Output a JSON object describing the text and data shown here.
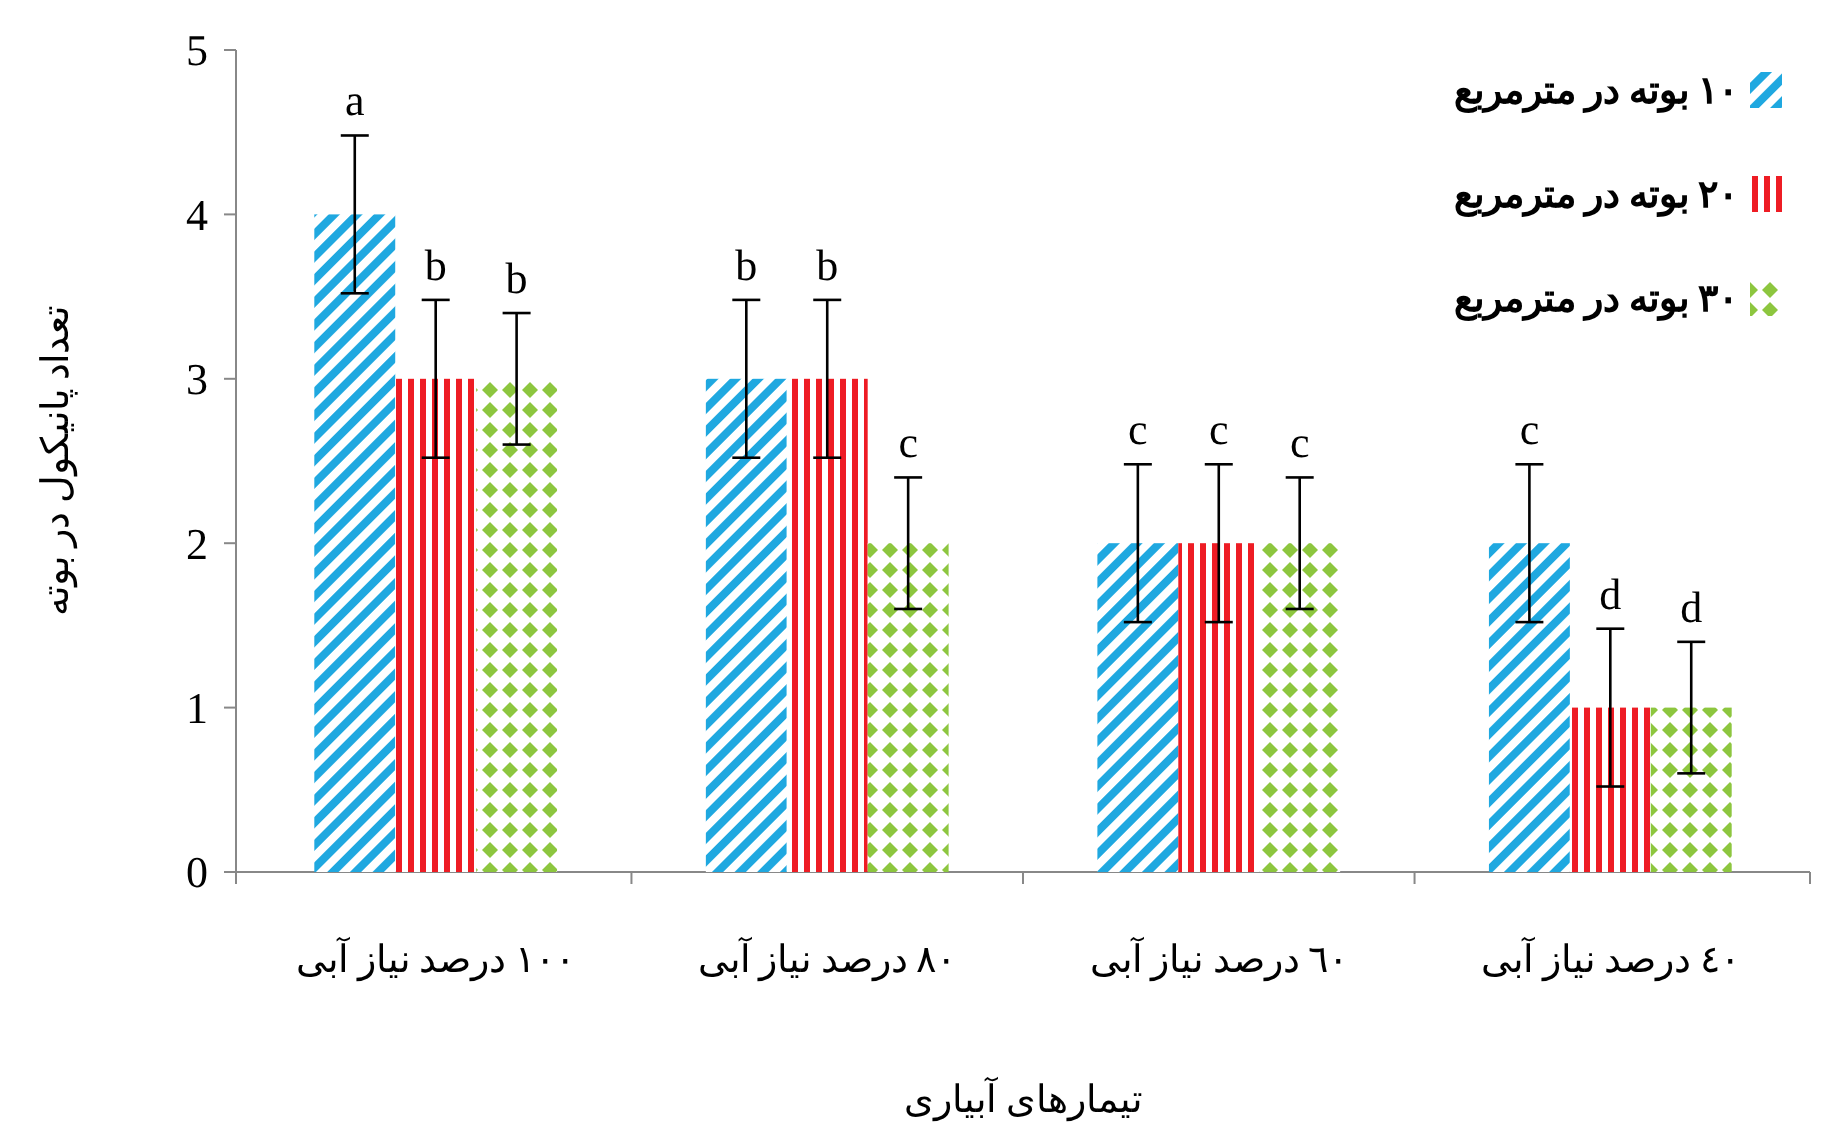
{
  "chart_data": {
    "type": "bar",
    "xlabel": "تیمارهای آبیاری",
    "ylabel": "تعداد پانیکول در بوته",
    "categories": [
      "١٠٠ درصد نیاز آبی",
      "٨٠ درصد نیاز آبی",
      "٦٠ درصد نیاز آبی",
      "٤٠ درصد نیاز آبی"
    ],
    "series": [
      {
        "name": "١٠ بوته در مترمربع",
        "color": "#1fa8e0",
        "values": [
          4,
          3,
          2,
          2
        ],
        "errors": [
          0.48,
          0.48,
          0.48,
          0.48
        ],
        "value_labels": [
          "a",
          "b",
          "c",
          "c"
        ]
      },
      {
        "name": "٢٠ بوته در مترمربع",
        "color": "#ee1c24",
        "values": [
          3,
          3,
          2,
          1
        ],
        "errors": [
          0.48,
          0.48,
          0.48,
          0.48
        ],
        "value_labels": [
          "b",
          "b",
          "c",
          "d"
        ]
      },
      {
        "name": "٣٠ بوته در مترمربع",
        "color": "#8dc63f",
        "values": [
          3,
          2,
          2,
          1
        ],
        "errors": [
          0.4,
          0.4,
          0.4,
          0.4
        ],
        "value_labels": [
          "b",
          "c",
          "c",
          "d"
        ]
      }
    ],
    "ylim": [
      0,
      5
    ],
    "yticks": [
      0,
      1,
      2,
      3,
      4,
      5
    ],
    "grid": false,
    "legend": "top right"
  }
}
